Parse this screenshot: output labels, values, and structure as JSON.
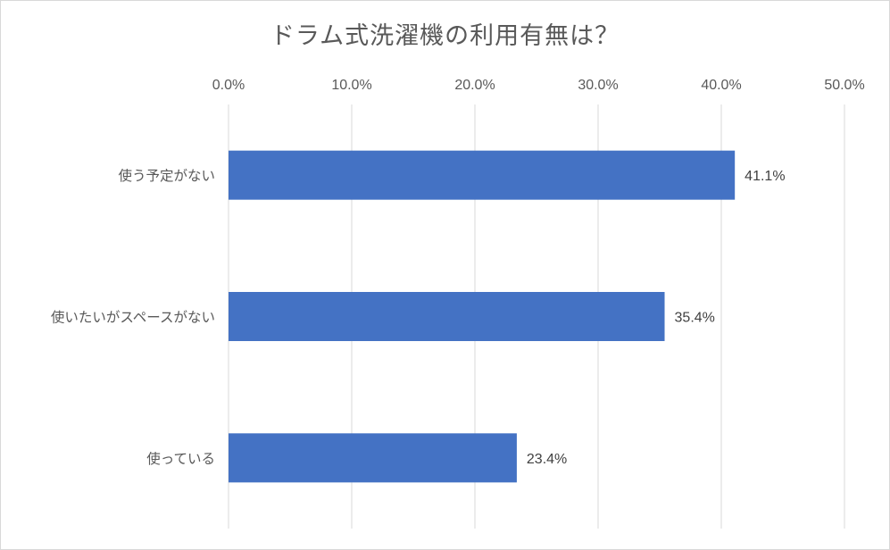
{
  "chart_data": {
    "type": "bar",
    "orientation": "horizontal",
    "title": "ドラム式洗濯機の利用有無は？",
    "categories": [
      "使う予定がない",
      "使いたいがスペースがない",
      "使っている"
    ],
    "values": [
      41.1,
      35.4,
      23.4
    ],
    "data_labels": [
      "41.1%",
      "35.4%",
      "23.4%"
    ],
    "x_ticks": [
      "0.0%",
      "10.0%",
      "20.0%",
      "30.0%",
      "40.0%",
      "50.0%"
    ],
    "x_tick_values": [
      0,
      10,
      20,
      30,
      40,
      50
    ],
    "xlim": [
      0,
      50
    ],
    "x_axis_position": "top",
    "grid": true,
    "legend": "none",
    "bar_color": "#4472c4",
    "grid_color": "#d9d9d9"
  }
}
